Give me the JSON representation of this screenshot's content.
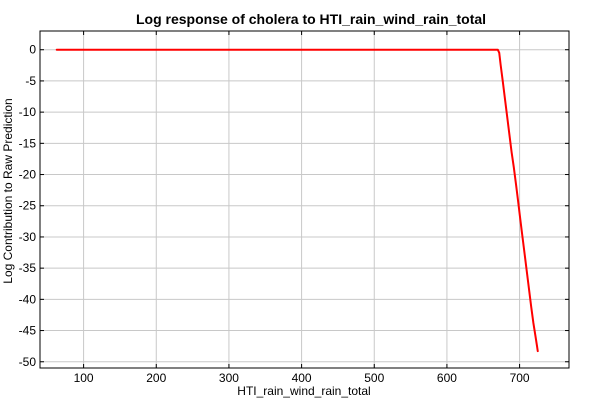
{
  "chart_data": {
    "type": "line",
    "title": "Log response of cholera to HTI_rain_wind_rain_total",
    "xlabel": "HTI_rain_wind_rain_total",
    "ylabel": "Log Contribution to Raw Prediction",
    "xlim": [
      40,
      768
    ],
    "ylim": [
      -51,
      3
    ],
    "xticks": [
      100,
      200,
      300,
      400,
      500,
      600,
      700
    ],
    "yticks": [
      0,
      -5,
      -10,
      -15,
      -20,
      -25,
      -30,
      -35,
      -40,
      -45,
      -50
    ],
    "grid": true,
    "legend": "none",
    "series": [
      {
        "color": "#ff0000",
        "x": [
          63,
          670,
          672,
          674,
          677,
          680,
          683,
          686,
          689,
          692,
          695,
          698,
          701,
          704,
          707,
          710,
          713,
          716,
          719,
          722,
          724,
          725
        ],
        "y": [
          0,
          0,
          -0.5,
          -2.5,
          -5.2,
          -8.0,
          -10.8,
          -13.6,
          -16.4,
          -18.8,
          -21.5,
          -24.3,
          -27.2,
          -30.0,
          -32.8,
          -35.6,
          -38.4,
          -41.2,
          -43.8,
          -46.0,
          -47.5,
          -48.3
        ]
      }
    ]
  }
}
